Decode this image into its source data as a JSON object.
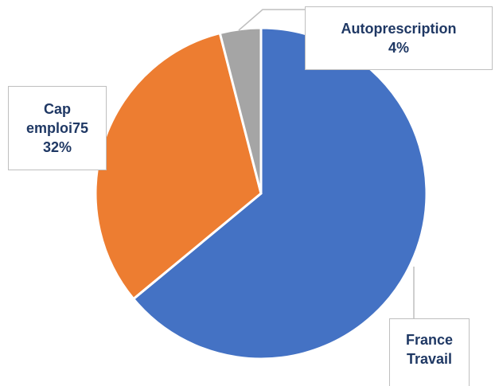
{
  "chart_data": {
    "type": "pie",
    "categories": [
      "France Travail",
      "Cap emploi75",
      "Autoprescription"
    ],
    "values": [
      64,
      32,
      4
    ],
    "value_labels": [
      null,
      "32%",
      "4%"
    ],
    "colors": [
      "#4472c4",
      "#ed7d31",
      "#a5a5a5"
    ]
  }
}
